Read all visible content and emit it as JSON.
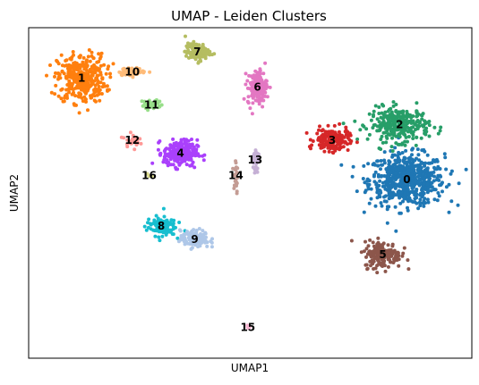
{
  "chart_data": {
    "type": "scatter",
    "title": "UMAP - Leiden Clusters",
    "xlabel": "UMAP1",
    "ylabel": "UMAP2",
    "xlim": [
      -8.2,
      10.2
    ],
    "ylim": [
      -6.0,
      9.0
    ],
    "grid": false,
    "legend": "none",
    "clusters": [
      {
        "label": "0",
        "color": "#1f77b4",
        "center": [
          7.5,
          2.1
        ],
        "spread": [
          0.78,
          0.58
        ],
        "count": 620
      },
      {
        "label": "1",
        "color": "#ff7f0e",
        "center": [
          -6.0,
          6.7
        ],
        "spread": [
          0.5,
          0.55
        ],
        "count": 360
      },
      {
        "label": "2",
        "color": "#279e68",
        "center": [
          7.2,
          4.6
        ],
        "spread": [
          0.62,
          0.38
        ],
        "count": 300
      },
      {
        "label": "3",
        "color": "#d62728",
        "center": [
          4.4,
          3.9
        ],
        "spread": [
          0.35,
          0.25
        ],
        "count": 200
      },
      {
        "label": "4",
        "color": "#aa40fc",
        "center": [
          -1.9,
          3.3
        ],
        "spread": [
          0.35,
          0.3
        ],
        "count": 250
      },
      {
        "label": "5",
        "color": "#8c564b",
        "center": [
          6.5,
          -1.3
        ],
        "spread": [
          0.38,
          0.3
        ],
        "count": 180
      },
      {
        "label": "6",
        "color": "#e377c2",
        "center": [
          1.3,
          6.3
        ],
        "spread": [
          0.2,
          0.4
        ],
        "count": 150
      },
      {
        "label": "7",
        "color": "#b5bd61",
        "center": [
          -1.2,
          7.9
        ],
        "spread": [
          0.25,
          0.2
        ],
        "count": 120
      },
      {
        "label": "8",
        "color": "#17becf",
        "center": [
          -2.7,
          0.0
        ],
        "spread": [
          0.3,
          0.22
        ],
        "count": 120
      },
      {
        "label": "9",
        "color": "#aec7e8",
        "center": [
          -1.3,
          -0.6
        ],
        "spread": [
          0.3,
          0.2
        ],
        "count": 120
      },
      {
        "label": "10",
        "color": "#ffbb78",
        "center": [
          -3.9,
          7.0
        ],
        "spread": [
          0.28,
          0.08
        ],
        "count": 80
      },
      {
        "label": "11",
        "color": "#98df8a",
        "center": [
          -3.1,
          5.5
        ],
        "spread": [
          0.2,
          0.12
        ],
        "count": 45
      },
      {
        "label": "12",
        "color": "#ff9896",
        "center": [
          -3.9,
          3.9
        ],
        "spread": [
          0.15,
          0.14
        ],
        "count": 30
      },
      {
        "label": "13",
        "color": "#c5b0d5",
        "center": [
          1.2,
          3.0
        ],
        "spread": [
          0.06,
          0.3
        ],
        "count": 30
      },
      {
        "label": "14",
        "color": "#c49c94",
        "center": [
          0.4,
          2.3
        ],
        "spread": [
          0.05,
          0.55
        ],
        "count": 25
      },
      {
        "label": "15",
        "color": "#f7b6d2",
        "center": [
          0.9,
          -4.6
        ],
        "spread": [
          0.05,
          0.05
        ],
        "count": 8
      },
      {
        "label": "16",
        "color": "#dbdb8d",
        "center": [
          -3.2,
          2.3
        ],
        "spread": [
          0.05,
          0.05
        ],
        "count": 4
      }
    ]
  }
}
